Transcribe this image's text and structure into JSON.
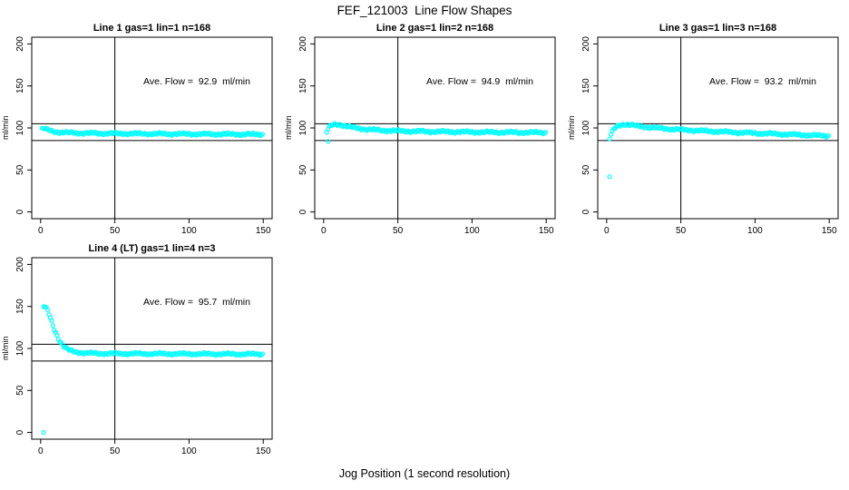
{
  "title": "FEF_121003  Line Flow Shapes",
  "xlabel": "Jog Position (1 second resolution)",
  "ylabel": "ml/min",
  "colors": {
    "points": "#00ffff",
    "axis": "#000000",
    "background": "#ffffff"
  },
  "axes": {
    "x_ticks": [
      0,
      50,
      100,
      150
    ],
    "y_ticks": [
      0,
      50,
      100,
      150,
      200
    ],
    "xlim": [
      -6,
      156
    ],
    "ylim": [
      -8,
      208
    ],
    "grid": false
  },
  "ref_lines": {
    "horizontal": [
      105,
      85
    ],
    "vertical": [
      50
    ]
  },
  "chart_data": [
    {
      "type": "scatter",
      "title": "Line 1 gas=1 lin=1 n=168",
      "annotation": "Ave. Flow =  92.9  ml/min",
      "ave_flow_ml_min": 92.9,
      "n": 168,
      "x_range": [
        1,
        150
      ],
      "control_points": [
        [
          1,
          98.5
        ],
        [
          2,
          99.5
        ],
        [
          3,
          99
        ],
        [
          5,
          97.5
        ],
        [
          8,
          96
        ],
        [
          12,
          95
        ],
        [
          18,
          94.4
        ],
        [
          30,
          93.8
        ],
        [
          50,
          93.4
        ],
        [
          80,
          93
        ],
        [
          110,
          92.7
        ],
        [
          150,
          92.3
        ]
      ],
      "outliers": []
    },
    {
      "type": "scatter",
      "title": "Line 2 gas=1 lin=2 n=168",
      "annotation": "Ave. Flow =  94.9  ml/min",
      "ave_flow_ml_min": 94.9,
      "n": 168,
      "x_range": [
        2,
        150
      ],
      "control_points": [
        [
          2,
          95
        ],
        [
          3,
          99
        ],
        [
          5,
          103
        ],
        [
          8,
          104.5
        ],
        [
          11,
          104
        ],
        [
          15,
          102
        ],
        [
          20,
          100.5
        ],
        [
          28,
          98.5
        ],
        [
          40,
          97
        ],
        [
          60,
          96
        ],
        [
          90,
          95.3
        ],
        [
          120,
          94.8
        ],
        [
          150,
          94.5
        ]
      ],
      "outliers": [
        [
          3,
          84
        ]
      ]
    },
    {
      "type": "scatter",
      "title": "Line 3 gas=1 lin=3 n=168",
      "annotation": "Ave. Flow =  93.2  ml/min",
      "ave_flow_ml_min": 93.2,
      "n": 168,
      "x_range": [
        2,
        150
      ],
      "control_points": [
        [
          2,
          87
        ],
        [
          3,
          93
        ],
        [
          5,
          99
        ],
        [
          8,
          103
        ],
        [
          12,
          104.5
        ],
        [
          16,
          103.5
        ],
        [
          22,
          102
        ],
        [
          30,
          100.5
        ],
        [
          45,
          98.5
        ],
        [
          65,
          96.5
        ],
        [
          90,
          94.5
        ],
        [
          120,
          92.5
        ],
        [
          150,
          90.5
        ]
      ],
      "outliers": [
        [
          2,
          42
        ]
      ]
    },
    {
      "type": "scatter",
      "title": "Line 4 (LT) gas=1 lin=4 n=3",
      "annotation": "Ave. Flow =  95.7  ml/min",
      "ave_flow_ml_min": 95.7,
      "n": 3,
      "x_range": [
        2,
        150
      ],
      "control_points": [
        [
          2,
          150
        ],
        [
          3,
          149.5
        ],
        [
          4,
          147
        ],
        [
          5,
          143.5
        ],
        [
          6,
          139
        ],
        [
          7,
          134
        ],
        [
          8,
          129
        ],
        [
          9,
          124
        ],
        [
          10,
          119.5
        ],
        [
          11,
          115.5
        ],
        [
          12,
          112
        ],
        [
          13,
          108.5
        ],
        [
          14,
          106
        ],
        [
          15,
          103.5
        ],
        [
          16,
          101.5
        ],
        [
          18,
          99
        ],
        [
          20,
          97.5
        ],
        [
          23,
          96
        ],
        [
          26,
          95.2
        ],
        [
          30,
          94.6
        ],
        [
          40,
          94
        ],
        [
          60,
          93.8
        ],
        [
          90,
          93.6
        ],
        [
          120,
          93.4
        ],
        [
          150,
          93.2
        ]
      ],
      "outliers": [
        [
          2,
          0
        ]
      ]
    }
  ]
}
